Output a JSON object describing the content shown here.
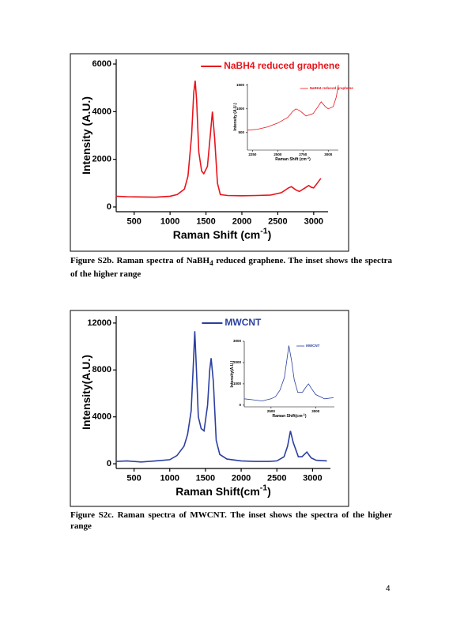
{
  "chart_data": [
    {
      "type": "line",
      "x": [
        250,
        400,
        600,
        800,
        1000,
        1100,
        1200,
        1250,
        1300,
        1330,
        1350,
        1370,
        1400,
        1440,
        1470,
        1520,
        1560,
        1590,
        1620,
        1660,
        1700,
        1800,
        2000,
        2200,
        2400,
        2550,
        2650,
        2690,
        2750,
        2800,
        2870,
        2930,
        2970,
        3000,
        3050,
        3100
      ],
      "series": [
        {
          "name": "NaBH4 reduced graphene",
          "color": "#e8141b",
          "values": [
            450,
            430,
            420,
            410,
            450,
            520,
            750,
            1300,
            3000,
            4800,
            5300,
            4500,
            2300,
            1500,
            1400,
            1700,
            3000,
            4000,
            2900,
            1000,
            520,
            480,
            470,
            480,
            500,
            600,
            800,
            850,
            720,
            650,
            780,
            900,
            820,
            800,
            1000,
            1200
          ]
        }
      ],
      "xlim": [
        250,
        3200
      ],
      "ylim": [
        -200,
        6200
      ],
      "xticks": [
        500,
        1000,
        1500,
        2000,
        2500,
        3000
      ],
      "yticks": [
        0,
        2000,
        4000,
        6000
      ],
      "x_label": [
        "Raman Shift (cm",
        "-1",
        ")"
      ],
      "y_label": "Intensity (A.U.)",
      "inset": {
        "type": "line",
        "x": [
          2200,
          2300,
          2400,
          2500,
          2600,
          2650,
          2680,
          2720,
          2780,
          2850,
          2900,
          2930,
          2970,
          3000,
          3050,
          3080,
          3100
        ],
        "series": [
          {
            "name": "NaBH4 reduced graphene",
            "color": "#e8141b",
            "values": [
              550,
              570,
              620,
              700,
              820,
              950,
              1000,
              960,
              850,
              900,
              1050,
              1150,
              1050,
              1000,
              1050,
              1250,
              1500
            ]
          }
        ],
        "xlim": [
          2200,
          3100
        ],
        "ylim": [
          130,
          1530
        ],
        "xticks": [
          2250,
          2500,
          2750,
          3000
        ],
        "yticks": [
          500,
          1000,
          1500
        ],
        "x_label": [
          "Raman Shift (cm",
          "-1",
          ")"
        ],
        "y_label": "Intensity (A.U.)"
      }
    },
    {
      "type": "line",
      "x": [
        250,
        400,
        600,
        800,
        1000,
        1100,
        1200,
        1250,
        1300,
        1330,
        1350,
        1370,
        1400,
        1440,
        1480,
        1530,
        1560,
        1580,
        1610,
        1650,
        1700,
        1800,
        2000,
        2200,
        2400,
        2500,
        2600,
        2650,
        2690,
        2730,
        2800,
        2850,
        2920,
        2980,
        3050,
        3200
      ],
      "series": [
        {
          "name": "MWCNT",
          "color": "#2b3fa0",
          "values": [
            200,
            250,
            150,
            250,
            350,
            700,
            1500,
            2500,
            4500,
            8500,
            11300,
            8500,
            4000,
            3000,
            2800,
            5000,
            8000,
            9000,
            7000,
            2000,
            800,
            400,
            250,
            200,
            200,
            250,
            600,
            1500,
            2800,
            1800,
            600,
            600,
            1000,
            500,
            300,
            250
          ]
        }
      ],
      "xlim": [
        250,
        3250
      ],
      "ylim": [
        -400,
        12600
      ],
      "xticks": [
        500,
        1000,
        1500,
        2000,
        2500,
        3000
      ],
      "yticks": [
        0,
        4000,
        8000,
        12000
      ],
      "x_label": [
        "Raman Shift(cm",
        "-1",
        ")"
      ],
      "y_label": "Intensity(A.U.)",
      "inset": {
        "type": "line",
        "x": [
          2200,
          2300,
          2400,
          2500,
          2550,
          2600,
          2650,
          2680,
          2700,
          2730,
          2760,
          2800,
          2850,
          2900,
          2920,
          2950,
          3000,
          3100,
          3200
        ],
        "series": [
          {
            "name": "MWCNT",
            "color": "#2b3fa0",
            "values": [
              300,
              250,
              200,
              300,
              400,
              700,
              1300,
              2200,
              2800,
              2100,
              1200,
              600,
              600,
              900,
              1000,
              800,
              500,
              300,
              350
            ]
          }
        ],
        "xlim": [
          2200,
          3210
        ],
        "ylim": [
          -80,
          3000
        ],
        "xticks": [
          2500,
          3000
        ],
        "yticks": [
          0,
          1000,
          2000,
          3000
        ],
        "x_label": [
          "Raman Shift(cm",
          "-1",
          ")"
        ],
        "y_label": "Intensity(A.U.)"
      }
    }
  ],
  "captions": [
    [
      "Figure S2b. Raman spectra of NaBH",
      "4",
      " reduced graphene. The inset shows the spectra of the higher range"
    ],
    [
      "Figure S2c. Raman spectra of MWCNT. The inset shows the spectra of the higher range"
    ]
  ],
  "page_number": "4"
}
